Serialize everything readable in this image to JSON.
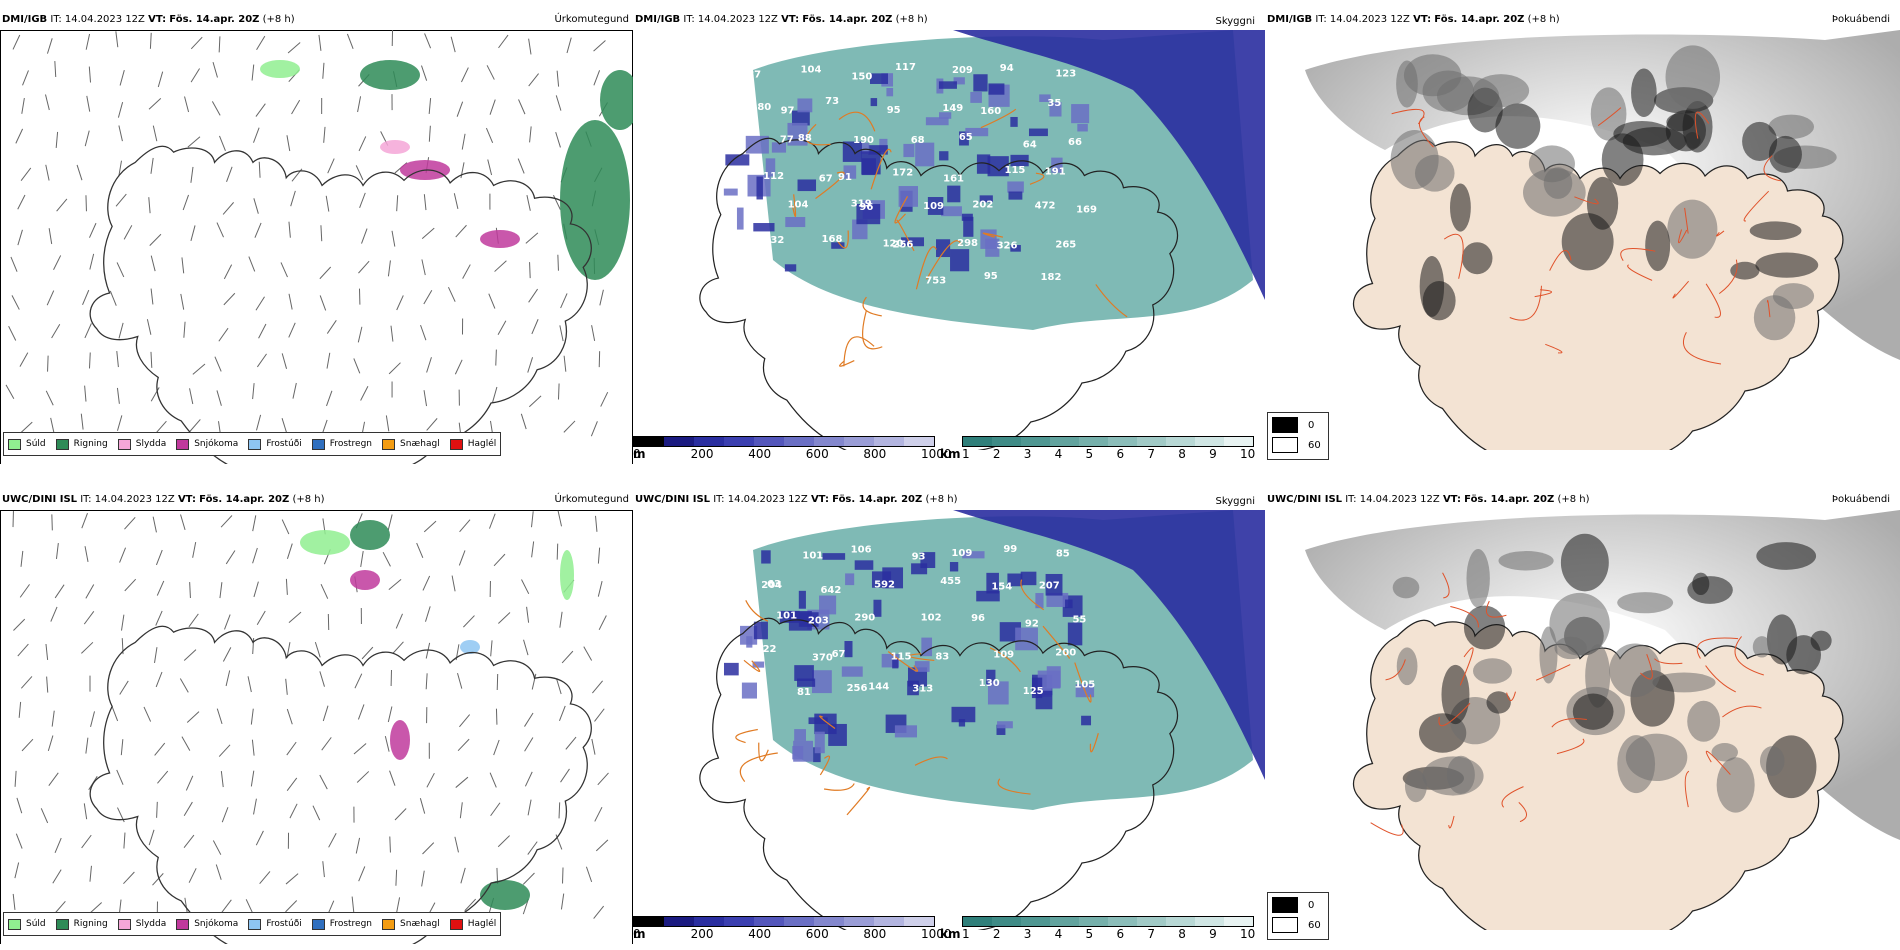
{
  "rows": [
    {
      "precip": {
        "model": "DMI/IGB",
        "it": "IT: 14.04.2023 12Z",
        "vt_label": "VT:",
        "vt_value": "Fös. 14.apr. 20Z",
        "lead": "(+8 h)",
        "label": "Úrkomutegund"
      },
      "vis": {
        "model": "DMI/IGB",
        "it": "IT: 14.04.2023 12Z",
        "vt_label": "VT:",
        "vt_value": "Fös. 14.apr. 20Z",
        "lead": "(+8 h)",
        "label": "Skyggni"
      },
      "cloud": {
        "model": "DMI/IGB",
        "it": "IT: 14.04.2023 12Z",
        "vt_label": "VT:",
        "vt_value": "Fös. 14.apr. 20Z",
        "lead": "(+8 h)",
        "label": "Þokuábendi"
      }
    },
    {
      "precip": {
        "model": "UWC/DINI ISL",
        "it": "IT: 14.04.2023 12Z",
        "vt_label": "VT:",
        "vt_value": "Fös. 14.apr. 20Z",
        "lead": "(+8 h)",
        "label": "Úrkomutegund"
      },
      "vis": {
        "model": "UWC/DINI ISL",
        "it": "IT: 14.04.2023 12Z",
        "vt_label": "VT:",
        "vt_value": "Fös. 14.apr. 20Z",
        "lead": "(+8 h)",
        "label": "Skyggni"
      },
      "cloud": {
        "model": "UWC/DINI ISL",
        "it": "IT: 14.04.2023 12Z",
        "vt_label": "VT:",
        "vt_value": "Fös. 14.apr. 20Z",
        "lead": "(+8 h)",
        "label": "Þokuábendi"
      }
    }
  ],
  "precip_legend": [
    {
      "label": "Súld",
      "color": "#90ee90"
    },
    {
      "label": "Rigning",
      "color": "#2e8b57"
    },
    {
      "label": "Slydda",
      "color": "#f4a6d7"
    },
    {
      "label": "Snjókoma",
      "color": "#c0399c"
    },
    {
      "label": "Frostúði",
      "color": "#8ec5f2"
    },
    {
      "label": "Frostregn",
      "color": "#2f6fbf"
    },
    {
      "label": "Snæhagl",
      "color": "#f39c12"
    },
    {
      "label": "Haglél",
      "color": "#e01010"
    }
  ],
  "ceiling_bar": {
    "unit": "m",
    "ticks": [
      "0",
      "200",
      "400",
      "600",
      "800",
      "1000"
    ],
    "colors": [
      "#000000",
      "#1a1a80",
      "#2a2ea0",
      "#3b3fb0",
      "#5356bb",
      "#6a6fc4",
      "#8387cd",
      "#9a9dd6",
      "#b3b5e0",
      "#cfd0ea"
    ]
  },
  "visibility_bar": {
    "unit": "km",
    "ticks": [
      "1",
      "2",
      "3",
      "4",
      "5",
      "6",
      "7",
      "8",
      "9",
      "10"
    ],
    "colors": [
      "#2f7f7a",
      "#3f8b86",
      "#4f9792",
      "#62a39e",
      "#76b0ab",
      "#8bbdb9",
      "#a1cac6",
      "#b8d8d5",
      "#d0e6e4",
      "#e8f3f2"
    ]
  },
  "cloud_key": [
    {
      "value": "0",
      "color": "#000000"
    },
    {
      "value": "60",
      "color": "#ffffff"
    }
  ],
  "map_values": {
    "dmi": [
      "87",
      "104",
      "150",
      "117",
      "209",
      "94",
      "123",
      "97",
      "73",
      "95",
      "149",
      "160",
      "35",
      "80",
      "88",
      "190",
      "68",
      "65",
      "64",
      "66",
      "77",
      "91",
      "172",
      "161",
      "115",
      "191",
      "112",
      "67",
      "96",
      "109",
      "202",
      "472",
      "169",
      "104",
      "319",
      "256",
      "298",
      "326",
      "265",
      "332",
      "168",
      "120",
      "753",
      "95",
      "182"
    ],
    "uwc": [
      "72",
      "101",
      "106",
      "93",
      "109",
      "99",
      "85",
      "63",
      "642",
      "592",
      "455",
      "154",
      "207",
      "204",
      "203",
      "290",
      "102",
      "96",
      "92",
      "55",
      "101",
      "67",
      "115",
      "83",
      "109",
      "200",
      "522",
      "370",
      "144",
      "313",
      "130",
      "125",
      "105",
      "81",
      "256"
    ]
  }
}
